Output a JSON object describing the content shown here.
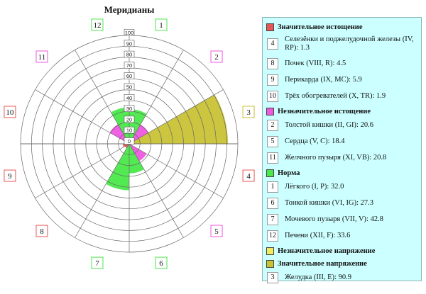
{
  "title": "Меридианы",
  "chart_data": {
    "type": "polar-bar",
    "title": "Меридианы",
    "radial_ticks": [
      0,
      10,
      20,
      30,
      40,
      50,
      60,
      70,
      80,
      90,
      100
    ],
    "rlim": [
      0,
      100
    ],
    "sectors": [
      {
        "number": "1",
        "value": 32.0,
        "group": "norm"
      },
      {
        "number": "2",
        "value": 20.6,
        "group": "minor_depletion"
      },
      {
        "number": "3",
        "value": 90.9,
        "group": "major_tension"
      },
      {
        "number": "4",
        "value": 1.3,
        "group": "major_depletion"
      },
      {
        "number": "5",
        "value": 18.4,
        "group": "minor_depletion"
      },
      {
        "number": "6",
        "value": 27.3,
        "group": "norm"
      },
      {
        "number": "7",
        "value": 42.8,
        "group": "norm"
      },
      {
        "number": "8",
        "value": 4.5,
        "group": "major_depletion"
      },
      {
        "number": "9",
        "value": 5.9,
        "group": "major_depletion"
      },
      {
        "number": "10",
        "value": 1.9,
        "group": "major_depletion"
      },
      {
        "number": "11",
        "value": 20.8,
        "group": "minor_depletion"
      },
      {
        "number": "12",
        "value": 33.6,
        "group": "norm"
      }
    ],
    "legend_position": "right"
  },
  "colors": {
    "major_depletion": "#e85757",
    "minor_depletion": "#ee57e0",
    "norm": "#4ae84a",
    "minor_tension": "#f2ea5a",
    "major_tension": "#c9c236",
    "grid": "#666666",
    "legend_bg": "#ccffff"
  },
  "legend": {
    "groups": [
      {
        "key": "major_depletion",
        "label": "Значительное истощение",
        "items": [
          {
            "num": "4",
            "text": "Селезёнки и поджелудочной железы (IV, RP): 1.3"
          },
          {
            "num": "8",
            "text": "Почек (VIII, R): 4.5"
          },
          {
            "num": "9",
            "text": "Перикарда (IX, MC): 5.9"
          },
          {
            "num": "10",
            "text": "Трёх обогревателей (X, TR): 1.9"
          }
        ]
      },
      {
        "key": "minor_depletion",
        "label": "Незначительное истощение",
        "items": [
          {
            "num": "2",
            "text": "Толстой кишки (II, GI): 20.6"
          },
          {
            "num": "5",
            "text": "Сердца (V, C): 18.4"
          },
          {
            "num": "11",
            "text": "Желчного пузыря (XI, VB): 20.8"
          }
        ]
      },
      {
        "key": "norm",
        "label": "Норма",
        "items": [
          {
            "num": "1",
            "text": "Лёгкого (I, P): 32.0"
          },
          {
            "num": "6",
            "text": "Тонкой кишки (VI, IG): 27.3"
          },
          {
            "num": "7",
            "text": "Мочевого пузыря (VII, V): 42.8"
          },
          {
            "num": "12",
            "text": "Печени (XII, F): 33.6"
          }
        ]
      },
      {
        "key": "minor_tension",
        "label": "Незначительное напряжение",
        "items": []
      },
      {
        "key": "major_tension",
        "label": "Значительное напряжение",
        "items": [
          {
            "num": "3",
            "text": "Желудка (III, E): 90.9"
          }
        ]
      }
    ]
  }
}
